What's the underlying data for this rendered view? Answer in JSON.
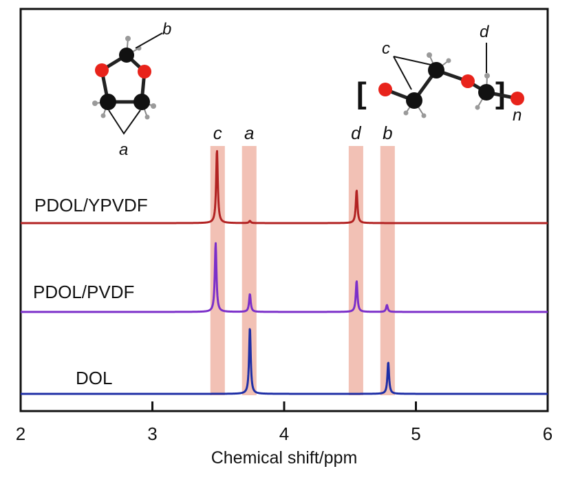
{
  "chart_data": {
    "type": "line",
    "xlabel": "Chemical shift/ppm",
    "xlim": [
      2,
      6
    ],
    "x_ticks": [
      "2",
      "3",
      "4",
      "5",
      "6"
    ],
    "grid": false,
    "legend": "none (series labels printed above each trace)",
    "colors": {
      "PDOL/YPVDF": "#b22222",
      "PDOL/PVDF": "#7b2fc9",
      "DOL": "#1f2fa6",
      "band": "#f2c1b5",
      "axis": "#111111"
    },
    "series": [
      {
        "name": "PDOL/YPVDF",
        "peaks": [
          {
            "label": "c",
            "ppm": 3.49,
            "height": 1.0
          },
          {
            "label": "a",
            "ppm": 3.74,
            "height": 0.03
          },
          {
            "label": "d",
            "ppm": 4.55,
            "height": 0.45
          }
        ]
      },
      {
        "name": "PDOL/PVDF",
        "peaks": [
          {
            "label": "c",
            "ppm": 3.48,
            "height": 1.0
          },
          {
            "label": "a",
            "ppm": 3.74,
            "height": 0.26
          },
          {
            "label": "d",
            "ppm": 4.55,
            "height": 0.45
          },
          {
            "label": "b",
            "ppm": 4.78,
            "height": 0.1
          }
        ]
      },
      {
        "name": "DOL",
        "peaks": [
          {
            "label": "a",
            "ppm": 3.74,
            "height": 1.0
          },
          {
            "label": "b",
            "ppm": 4.79,
            "height": 0.48
          }
        ]
      }
    ],
    "highlight_bands": [
      {
        "label": "c",
        "from": 3.44,
        "to": 3.55
      },
      {
        "label": "a",
        "from": 3.68,
        "to": 3.79
      },
      {
        "label": "d",
        "from": 4.49,
        "to": 4.6
      },
      {
        "label": "b",
        "from": 4.73,
        "to": 4.84
      }
    ],
    "molecules": {
      "left": {
        "atom_labels": [
          "b",
          "a"
        ]
      },
      "right": {
        "atom_labels": [
          "c",
          "d",
          "n"
        ]
      }
    }
  }
}
